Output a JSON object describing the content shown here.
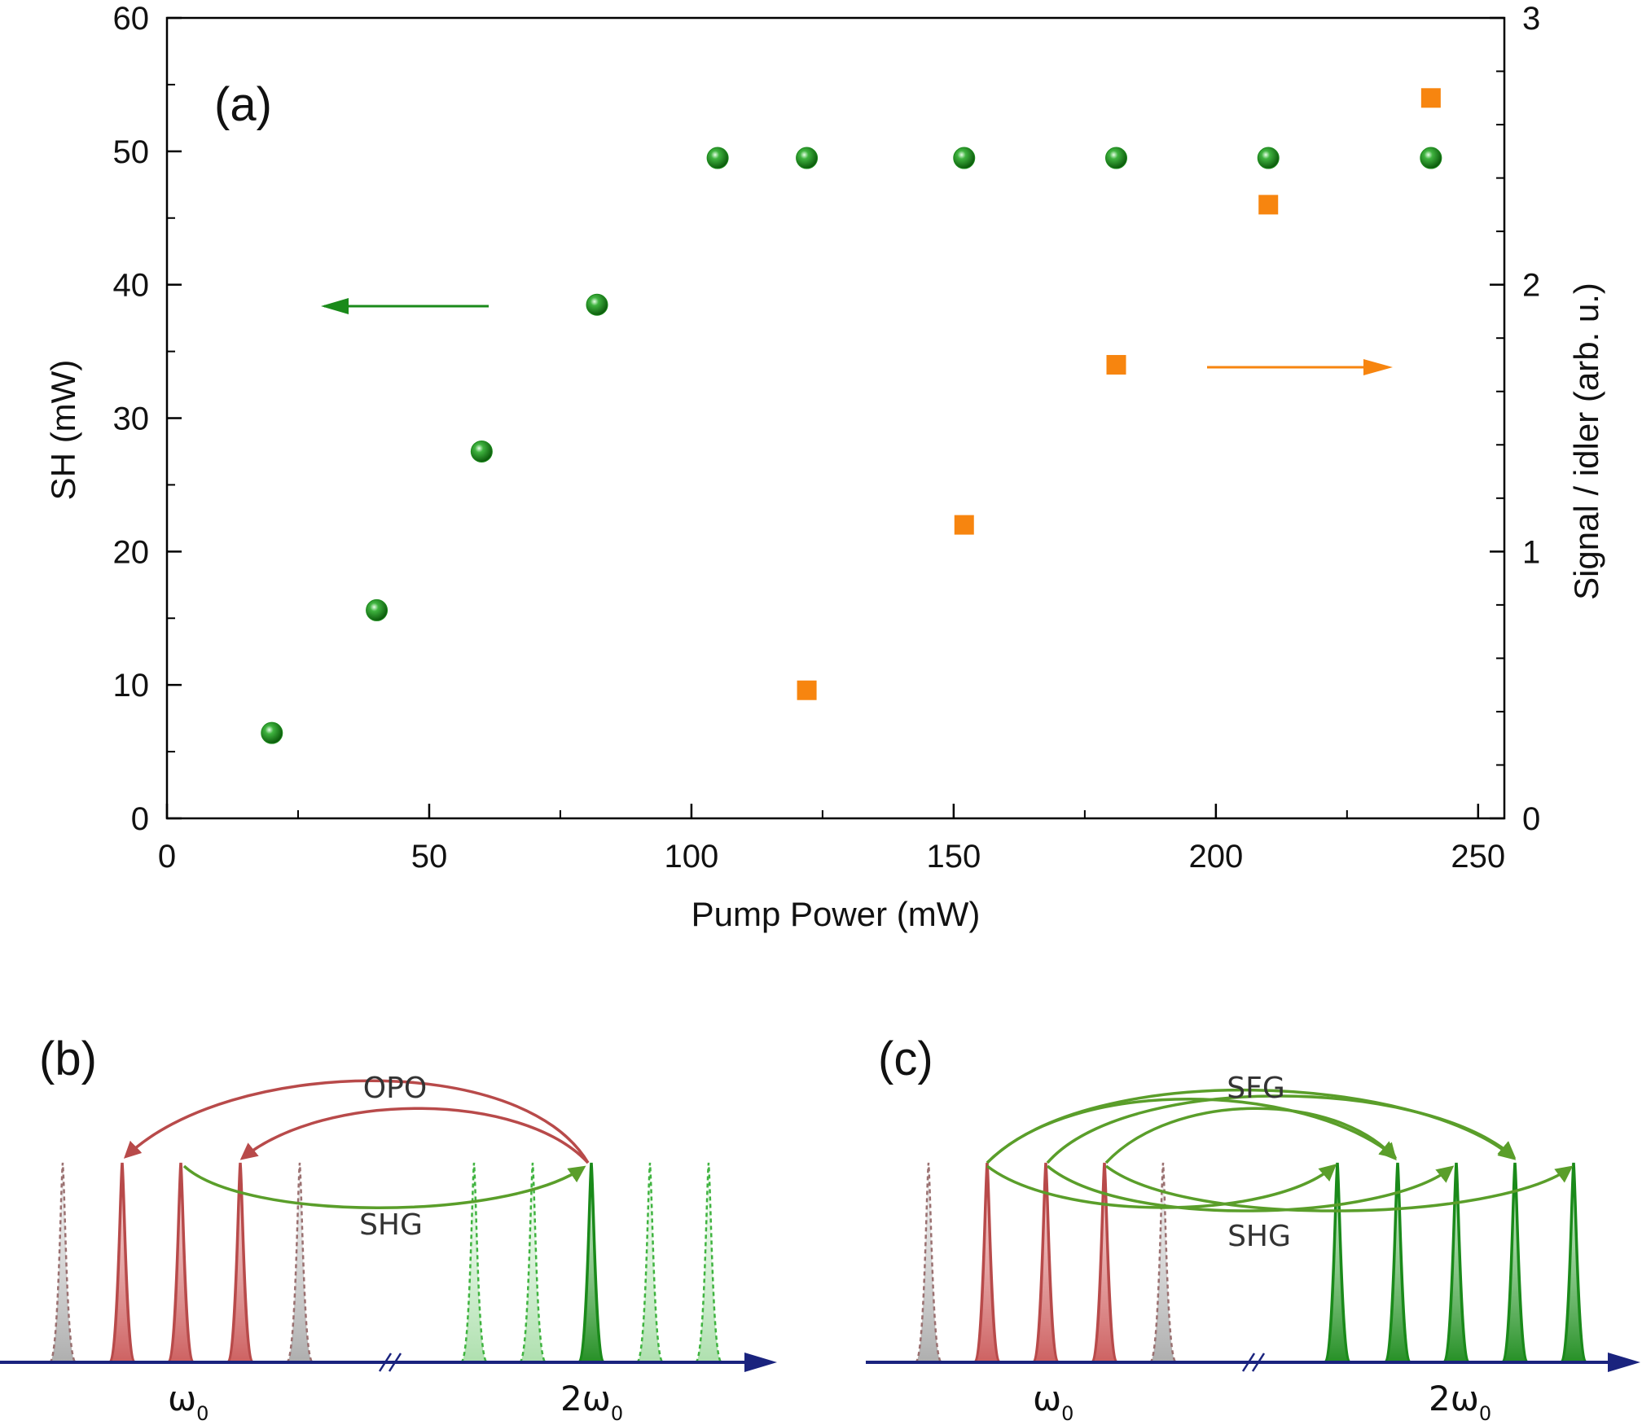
{
  "colors": {
    "sh_green": "#1a8a1a",
    "signal_orange": "#f7850f",
    "red_mode": "#b84a4a",
    "grey_mode": "#9a7070",
    "light_green_mode": "#3fb33f",
    "process_green": "#5a9e2a",
    "axis_navy": "#1a237e"
  },
  "chart_data": {
    "type": "scatter",
    "panel_label": "(a)",
    "xlabel": "Pump Power (mW)",
    "ylabel": "SH (mW)",
    "y2label": "Signal / idler (arb. u.)",
    "xlim": [
      0,
      255
    ],
    "ylim": [
      0,
      60
    ],
    "y2lim": [
      0,
      3
    ],
    "x_ticks": [
      "0",
      "50",
      "100",
      "150",
      "200",
      "250"
    ],
    "y_ticks": [
      "0",
      "10",
      "20",
      "30",
      "40",
      "50",
      "60"
    ],
    "y2_ticks": [
      "0",
      "1",
      "2",
      "3"
    ],
    "series": [
      {
        "axis": "left",
        "marker": "sphere",
        "points": [
          [
            20,
            6.4
          ],
          [
            40,
            15.6
          ],
          [
            60,
            27.5
          ],
          [
            82,
            38.5
          ],
          [
            105,
            49.5
          ],
          [
            122,
            49.5
          ],
          [
            152,
            49.5
          ],
          [
            181,
            49.5
          ],
          [
            210,
            49.5
          ],
          [
            241,
            49.5
          ]
        ]
      },
      {
        "axis": "right",
        "marker": "square",
        "points": [
          [
            122,
            0.48
          ],
          [
            152,
            1.1
          ],
          [
            181,
            1.7
          ],
          [
            210,
            2.3
          ],
          [
            241,
            2.7
          ]
        ]
      }
    ],
    "annotations": [
      {
        "type": "arrow",
        "direction": "left",
        "series": 0
      },
      {
        "type": "arrow",
        "direction": "right",
        "series": 1
      }
    ]
  },
  "panel_b": {
    "label": "(b)",
    "process_top": "OPO",
    "process_bottom": "SHG",
    "omega0": "ω",
    "omega0_sub": "0",
    "omega2": "2ω",
    "omega2_sub": "0"
  },
  "panel_c": {
    "label": "(c)",
    "process_top": "SFG",
    "process_bottom": "SHG",
    "omega0": "ω",
    "omega0_sub": "0",
    "omega2": "2ω",
    "omega2_sub": "0"
  }
}
